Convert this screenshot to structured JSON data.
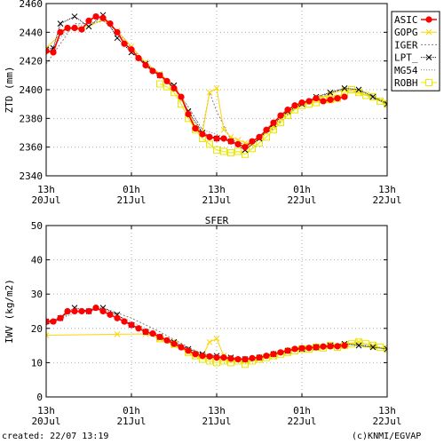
{
  "page": {
    "created": "created: 22/07 13:19",
    "credit": "(c)KNMI/EGVAP"
  },
  "colors": {
    "ASIC": "#ff0000",
    "GOPG": "#ffd400",
    "IGER": "#808080",
    "LPT_": "#000000",
    "MG54": "#808080",
    "ROBH": "#e8e800"
  },
  "chart_data": [
    {
      "type": "line",
      "title": "",
      "xlabel": "",
      "ylabel": "ZTD (mm)",
      "ylim": [
        2340,
        2460
      ],
      "yticks": [
        2340,
        2360,
        2380,
        2400,
        2420,
        2440,
        2460
      ],
      "xlim": [
        0,
        48
      ],
      "xticks": [
        {
          "x": 0,
          "top": "13h",
          "bottom": "20Jul"
        },
        {
          "x": 12,
          "top": "01h",
          "bottom": "21Jul"
        },
        {
          "x": 24,
          "top": "13h",
          "bottom": "21Jul"
        },
        {
          "x": 36,
          "top": "01h",
          "bottom": "22Jul"
        },
        {
          "x": 48,
          "top": "13h",
          "bottom": "22Jul"
        }
      ],
      "grid": true,
      "legend": "right",
      "series": [
        {
          "name": "ASIC",
          "marker": "dot",
          "x": [
            0,
            1,
            2,
            3,
            4,
            5,
            6,
            7,
            8,
            9,
            10,
            11,
            12,
            13,
            14,
            15,
            16,
            17,
            18,
            19,
            20,
            21,
            22,
            23,
            24,
            25,
            26,
            27,
            28,
            29,
            30,
            31,
            32,
            33,
            34,
            35,
            36,
            37,
            38,
            39,
            40,
            41,
            42
          ],
          "y": [
            2427,
            2426,
            2440,
            2443,
            2443,
            2442,
            2448,
            2451,
            2450,
            2446,
            2440,
            2432,
            2428,
            2422,
            2417,
            2413,
            2410,
            2406,
            2401,
            2395,
            2383,
            2373,
            2369,
            2367,
            2366,
            2366,
            2364,
            2362,
            2360,
            2364,
            2367,
            2372,
            2377,
            2382,
            2386,
            2389,
            2391,
            2392,
            2394,
            2392,
            2393,
            2394,
            2395
          ]
        },
        {
          "name": "GOPG",
          "marker": "x",
          "x": [
            0,
            3,
            6,
            8,
            10,
            12,
            14,
            16,
            18,
            20,
            21,
            22,
            23,
            24,
            25,
            26,
            27,
            28,
            29,
            30,
            32,
            34,
            36,
            38,
            40,
            42,
            44,
            46,
            48
          ],
          "y": [
            2429,
            2443,
            2444,
            2449,
            2441,
            2430,
            2419,
            2411,
            2403,
            2385,
            2374,
            2370,
            2398,
            2401,
            2372,
            2367,
            2365,
            2363,
            2362,
            2366,
            2374,
            2384,
            2390,
            2393,
            2397,
            2400,
            2398,
            2395,
            2391
          ]
        },
        {
          "name": "IGER",
          "marker": "none",
          "x": [
            0,
            2,
            4,
            6,
            8,
            10,
            12,
            14,
            16,
            18,
            20,
            22,
            23,
            24,
            26,
            28,
            30,
            32,
            34,
            36,
            38,
            40,
            42,
            44,
            46,
            48
          ],
          "y": [
            2418,
            2432,
            2446,
            2446,
            2448,
            2441,
            2430,
            2418,
            2410,
            2402,
            2388,
            2372,
            2398,
            2385,
            2365,
            2362,
            2366,
            2373,
            2383,
            2390,
            2394,
            2398,
            2401,
            2400,
            2396,
            2391
          ]
        },
        {
          "name": "LPT_",
          "marker": "x",
          "x": [
            0,
            1,
            2,
            4,
            6,
            8,
            10,
            12,
            14,
            16,
            18,
            20,
            22,
            24,
            26,
            28,
            30,
            32,
            34,
            36,
            38,
            40,
            42,
            44,
            46,
            48
          ],
          "y": [
            2428,
            2429,
            2446,
            2451,
            2444,
            2452,
            2436,
            2426,
            2418,
            2410,
            2403,
            2385,
            2370,
            2366,
            2364,
            2358,
            2366,
            2376,
            2385,
            2390,
            2395,
            2398,
            2401,
            2400,
            2395,
            2390
          ]
        },
        {
          "name": "MG54",
          "marker": "none",
          "x": [
            0,
            2,
            4,
            6,
            8,
            10,
            12,
            14,
            16,
            18,
            20,
            22,
            24,
            26,
            28,
            30,
            32,
            34,
            36,
            38,
            40,
            42,
            44,
            46,
            48
          ],
          "y": [
            2424,
            2436,
            2445,
            2445,
            2448,
            2440,
            2429,
            2418,
            2409,
            2402,
            2388,
            2372,
            2369,
            2365,
            2362,
            2366,
            2374,
            2384,
            2390,
            2393,
            2398,
            2400,
            2398,
            2394,
            2390
          ]
        },
        {
          "name": "ROBH",
          "marker": "square",
          "x": [
            16,
            17,
            18,
            19,
            20,
            21,
            22,
            23,
            24,
            25,
            26,
            27,
            28,
            29,
            30,
            31,
            32,
            33,
            34,
            35,
            36,
            37,
            38,
            39,
            40,
            41,
            42,
            43,
            44,
            45,
            46,
            47,
            48
          ],
          "y": [
            2404,
            2402,
            2398,
            2390,
            2380,
            2372,
            2366,
            2362,
            2358,
            2357,
            2356,
            2357,
            2355,
            2359,
            2363,
            2367,
            2372,
            2377,
            2382,
            2386,
            2389,
            2390,
            2391,
            2393,
            2393,
            2394,
            2398,
            2400,
            2398,
            2396,
            2395,
            2392,
            2390
          ]
        }
      ]
    },
    {
      "type": "line",
      "title": "SFER",
      "xlabel": "",
      "ylabel": "IWV (kg/m2)",
      "ylim": [
        0,
        50
      ],
      "yticks": [
        0,
        10,
        20,
        30,
        40,
        50
      ],
      "xlim": [
        0,
        48
      ],
      "xticks": [
        {
          "x": 0,
          "top": "13h",
          "bottom": "20Jul"
        },
        {
          "x": 12,
          "top": "01h",
          "bottom": "21Jul"
        },
        {
          "x": 24,
          "top": "13h",
          "bottom": "21Jul"
        },
        {
          "x": 36,
          "top": "01h",
          "bottom": "22Jul"
        },
        {
          "x": 48,
          "top": "13h",
          "bottom": "22Jul"
        }
      ],
      "grid": true,
      "legend": "none",
      "series": [
        {
          "name": "ASIC",
          "marker": "dot",
          "x": [
            0,
            1,
            2,
            3,
            4,
            5,
            6,
            7,
            8,
            9,
            10,
            11,
            12,
            13,
            14,
            15,
            16,
            17,
            18,
            19,
            20,
            21,
            22,
            23,
            24,
            25,
            26,
            27,
            28,
            29,
            30,
            31,
            32,
            33,
            34,
            35,
            36,
            37,
            38,
            39,
            40,
            41,
            42
          ],
          "y": [
            22,
            22,
            23,
            25,
            25,
            25,
            25,
            26,
            25,
            24,
            23,
            22,
            21,
            20,
            19,
            18.5,
            17.5,
            16.5,
            15.5,
            14.5,
            13.5,
            12.5,
            12,
            11.8,
            11.5,
            11.5,
            11.2,
            11,
            11,
            11.3,
            11.5,
            12,
            12.5,
            13,
            13.5,
            14,
            14.2,
            14.3,
            14.5,
            14.7,
            14.8,
            14.8,
            15
          ]
        },
        {
          "name": "GOPG",
          "marker": "x",
          "x": [
            0,
            10,
            14,
            16,
            18,
            20,
            21,
            22,
            23,
            24,
            25,
            26,
            28,
            30,
            32,
            34,
            36,
            38,
            40,
            42,
            44,
            46,
            48
          ],
          "y": [
            18,
            18.3,
            18.4,
            17,
            15,
            13,
            12,
            12,
            16,
            17,
            12,
            11,
            10.5,
            11,
            12,
            13,
            14,
            14.5,
            15,
            15.5,
            16,
            15,
            14
          ]
        },
        {
          "name": "IGER",
          "marker": "none",
          "x": [
            0,
            4,
            8,
            12,
            16,
            20,
            22,
            24,
            26,
            28,
            30,
            32,
            34,
            36,
            38,
            40,
            42,
            44,
            46,
            48
          ],
          "y": [
            21,
            25,
            26,
            23,
            19,
            14.5,
            12.5,
            12,
            11.2,
            11,
            11.5,
            12.5,
            13.5,
            14.3,
            14.8,
            15,
            15.5,
            15.3,
            14.8,
            14
          ]
        },
        {
          "name": "LPT_",
          "marker": "x",
          "x": [
            0,
            2,
            4,
            6,
            8,
            10,
            12,
            14,
            16,
            18,
            20,
            22,
            24,
            26,
            28,
            30,
            32,
            34,
            36,
            38,
            40,
            42,
            44,
            46,
            48
          ],
          "y": [
            22,
            23,
            26,
            25,
            26,
            24,
            21,
            19,
            17.5,
            16,
            14,
            12.5,
            12,
            11.5,
            11,
            11.5,
            12.5,
            13.5,
            14,
            14.5,
            15,
            15.5,
            15,
            14.5,
            14
          ]
        },
        {
          "name": "MG54",
          "marker": "none",
          "x": [
            0,
            4,
            8,
            12,
            16,
            20,
            24,
            28,
            32,
            36,
            40,
            44,
            48
          ],
          "y": [
            21,
            24.5,
            25.5,
            22,
            18,
            14,
            11.8,
            11,
            12.5,
            14,
            15,
            15.5,
            14
          ]
        },
        {
          "name": "ROBH",
          "marker": "square",
          "x": [
            16,
            18,
            20,
            21,
            22,
            23,
            24,
            25,
            26,
            27,
            28,
            29,
            30,
            31,
            32,
            33,
            34,
            35,
            36,
            37,
            38,
            39,
            40,
            41,
            42,
            43,
            44,
            45,
            46,
            47,
            48
          ],
          "y": [
            17,
            15.5,
            13,
            12,
            11,
            10.5,
            10,
            10.5,
            10,
            10.5,
            9.5,
            10.5,
            11,
            11.5,
            12,
            12.5,
            13,
            13.5,
            14,
            14,
            14.5,
            14.3,
            15,
            14.5,
            15,
            15.5,
            16,
            15.5,
            15,
            14.5,
            14
          ]
        }
      ]
    }
  ]
}
